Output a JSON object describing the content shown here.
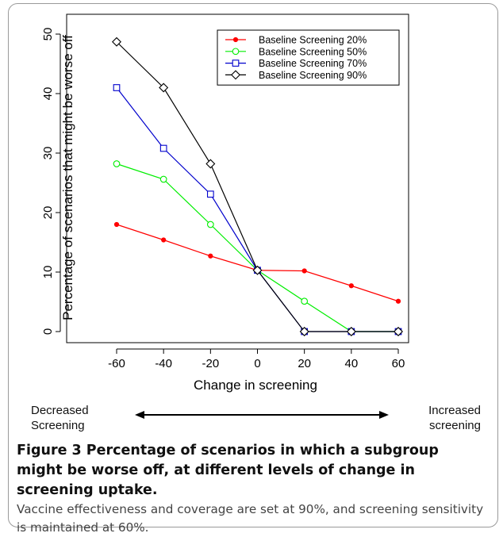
{
  "chart_data": {
    "type": "line",
    "xlabel": "Change in screening",
    "ylabel": "Percentage of scenarios that might be worse off",
    "x": [
      -60,
      -40,
      -20,
      0,
      20,
      40,
      60
    ],
    "xlim": [
      -60,
      60
    ],
    "ylim": [
      0,
      50
    ],
    "xticks": [
      "-60",
      "-40",
      "-20",
      "0",
      "20",
      "40",
      "60"
    ],
    "yticks": [
      "0",
      "10",
      "20",
      "30",
      "40",
      "50"
    ],
    "legend_position": "top-right",
    "grid": false,
    "series": [
      {
        "name": "Baseline Screening 20%",
        "color": "#ff0000",
        "marker": "filled-circle",
        "values": [
          18.0,
          15.4,
          12.7,
          10.3,
          10.2,
          7.7,
          5.1
        ]
      },
      {
        "name": "Baseline Screening 50%",
        "color": "#00ee00",
        "marker": "open-circle",
        "values": [
          28.2,
          25.6,
          18.0,
          10.3,
          5.1,
          0,
          0
        ]
      },
      {
        "name": "Baseline Screening 70%",
        "color": "#0000cc",
        "marker": "open-square",
        "values": [
          41.0,
          30.8,
          23.1,
          10.3,
          0,
          0,
          0
        ]
      },
      {
        "name": "Baseline Screening 90%",
        "color": "#000000",
        "marker": "open-diamond",
        "values": [
          48.7,
          41.0,
          28.2,
          10.3,
          0,
          0,
          0
        ]
      }
    ]
  },
  "arrow_labels": {
    "left": "Decreased\nScreening",
    "right": "Increased\nscreening"
  },
  "caption": {
    "title": "Figure 3 Percentage of scenarios in which a subgroup might be worse off, at different levels of change in screening uptake.",
    "body": "Vaccine effectiveness and coverage are set at 90%, and screening sensitivity is maintained at 60%."
  }
}
